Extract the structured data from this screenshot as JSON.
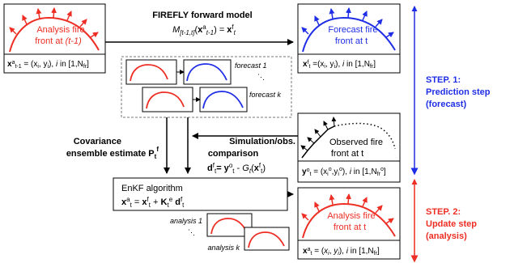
{
  "top_left": {
    "label_line1": "Analysis fire",
    "label_line2": "front at ",
    "label_time": "(t-1)",
    "formula": "x^a_{t-1} = (x_i, y_i), i in [1,N_fr]"
  },
  "top_right": {
    "label_line1": "Forecast fire",
    "label_line2": "front at t",
    "formula": "x^f_t = (x_i, y_i), i in [1,N_fr]"
  },
  "model": {
    "title": "FIREFLY forward model",
    "formula": "M_[t-1,t](x^a_{t-1}) = x^f_t"
  },
  "ensemble_forecast": {
    "label_1": "forecast 1",
    "label_k": "forecast k"
  },
  "observed": {
    "label_line1": "Observed fire",
    "label_line2": "front at t",
    "formula": "y^o_t = (x_i^o, y_i^o), i in [1,N_fr^o]"
  },
  "covariance": {
    "line1": "Covariance",
    "line2": "ensemble estimate P_t^f"
  },
  "comparison": {
    "line1": "Simulation/obs.",
    "line2": "comparison",
    "formula": "d^f_t = y^o_t - G_t(x^f_t)"
  },
  "enkf": {
    "title": "EnKF algorithm",
    "formula": "x^a_t = x^f_t + K_t^e d^f_t"
  },
  "ensemble_analysis": {
    "label_1": "analysis 1",
    "label_k": "analysis k"
  },
  "bottom_right": {
    "label_line1": "Analysis fire",
    "label_line2": "front at t",
    "formula": "x^a_t = (x_i, y_i), i in [1,N_fr]"
  },
  "steps": {
    "step1_line1": "STEP. 1:",
    "step1_line2": "Prediction step",
    "step1_line3": "(forecast)",
    "step2_line1": "STEP. 2:",
    "step2_line2": "Update step",
    "step2_line3": "(analysis)"
  },
  "colors": {
    "analysis": "#ee2e24",
    "forecast": "#1f2ee6",
    "step1": "#1f2ee6",
    "step2": "#ee2e24",
    "ink": "#000000",
    "dash": "#777777"
  }
}
